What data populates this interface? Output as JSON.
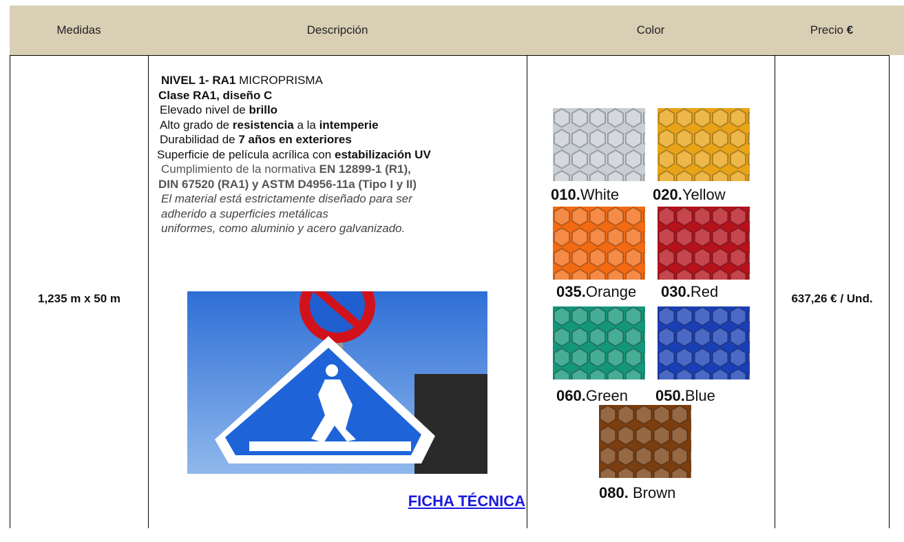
{
  "header": {
    "cells": [
      "Medidas",
      "Descripción",
      "Color"
    ],
    "price_label": "Precio",
    "price_currency": "€"
  },
  "row": {
    "size": "1,235 m x 50 m",
    "description": [
      {
        "style": "normal",
        "segments": [
          {
            "text": "NIVEL 1- RA1",
            "bold": true
          },
          {
            "text": "MICROPRISMA",
            "bold": false
          }
        ]
      },
      {
        "style": "normal",
        "segments": [
          {
            "text": "Clase RA1, diseño C",
            "bold": true
          }
        ]
      },
      {
        "style": "normal",
        "segments": [
          {
            "text": "Elevado nivel de",
            "bold": false
          },
          {
            "text": "brillo",
            "bold": true
          }
        ]
      },
      {
        "style": "normal",
        "segments": [
          {
            "text": "Alto grado de",
            "bold": false
          },
          {
            "text": "resistencia",
            "bold": true
          },
          {
            "text": "a la",
            "bold": false
          },
          {
            "text": "intemperie",
            "bold": true
          }
        ]
      },
      {
        "style": "normal",
        "segments": [
          {
            "text": "Durabilidad de",
            "bold": false
          },
          {
            "text": "7 años en exteriores",
            "bold": true
          }
        ]
      },
      {
        "style": "normal",
        "segments": [
          {
            "text": "Superficie de película acrílica con",
            "bold": false
          },
          {
            "text": "estabilización UV",
            "bold": true
          }
        ]
      },
      {
        "style": "gray",
        "segments": [
          {
            "text": "Cumplimiento de la normativa",
            "bold": false
          },
          {
            "text": "EN 12899-1 (R1),",
            "bold": true
          }
        ]
      },
      {
        "style": "gray",
        "segments": [
          {
            "text": "DIN 67520 (RA1) y ASTM D4956-11a (Tipo I y II)",
            "bold": true
          }
        ]
      },
      {
        "style": "italic",
        "segments": [
          {
            "text": "El material está estrictamente diseñado para ser",
            "bold": false
          }
        ]
      },
      {
        "style": "italic",
        "segments": [
          {
            "text": "adherido a superficies metálicas",
            "bold": false
          }
        ]
      },
      {
        "style": "italic",
        "segments": [
          {
            "text": "uniformes, como aluminio y acero galvanizado.",
            "bold": false
          }
        ]
      }
    ],
    "link": "FICHA TÉCNICA",
    "colors": [
      {
        "code": "010.",
        "name": "White",
        "color": "#c9ced3"
      },
      {
        "code": "020.",
        "name": "Yellow",
        "color": "#e8a317"
      },
      {
        "code": "035.",
        "name": "Orange",
        "color": "#f26a12"
      },
      {
        "code": "030.",
        "name": "Red",
        "color": "#b5121b"
      },
      {
        "code": "060.",
        "name": "Green",
        "color": "#14967a"
      },
      {
        "code": "050.",
        "name": "Blue",
        "color": "#1a3fb5"
      },
      {
        "code": "080.",
        "name": "Brown",
        "color": "#7a3e10"
      }
    ],
    "price": "637,26 € / Und."
  }
}
